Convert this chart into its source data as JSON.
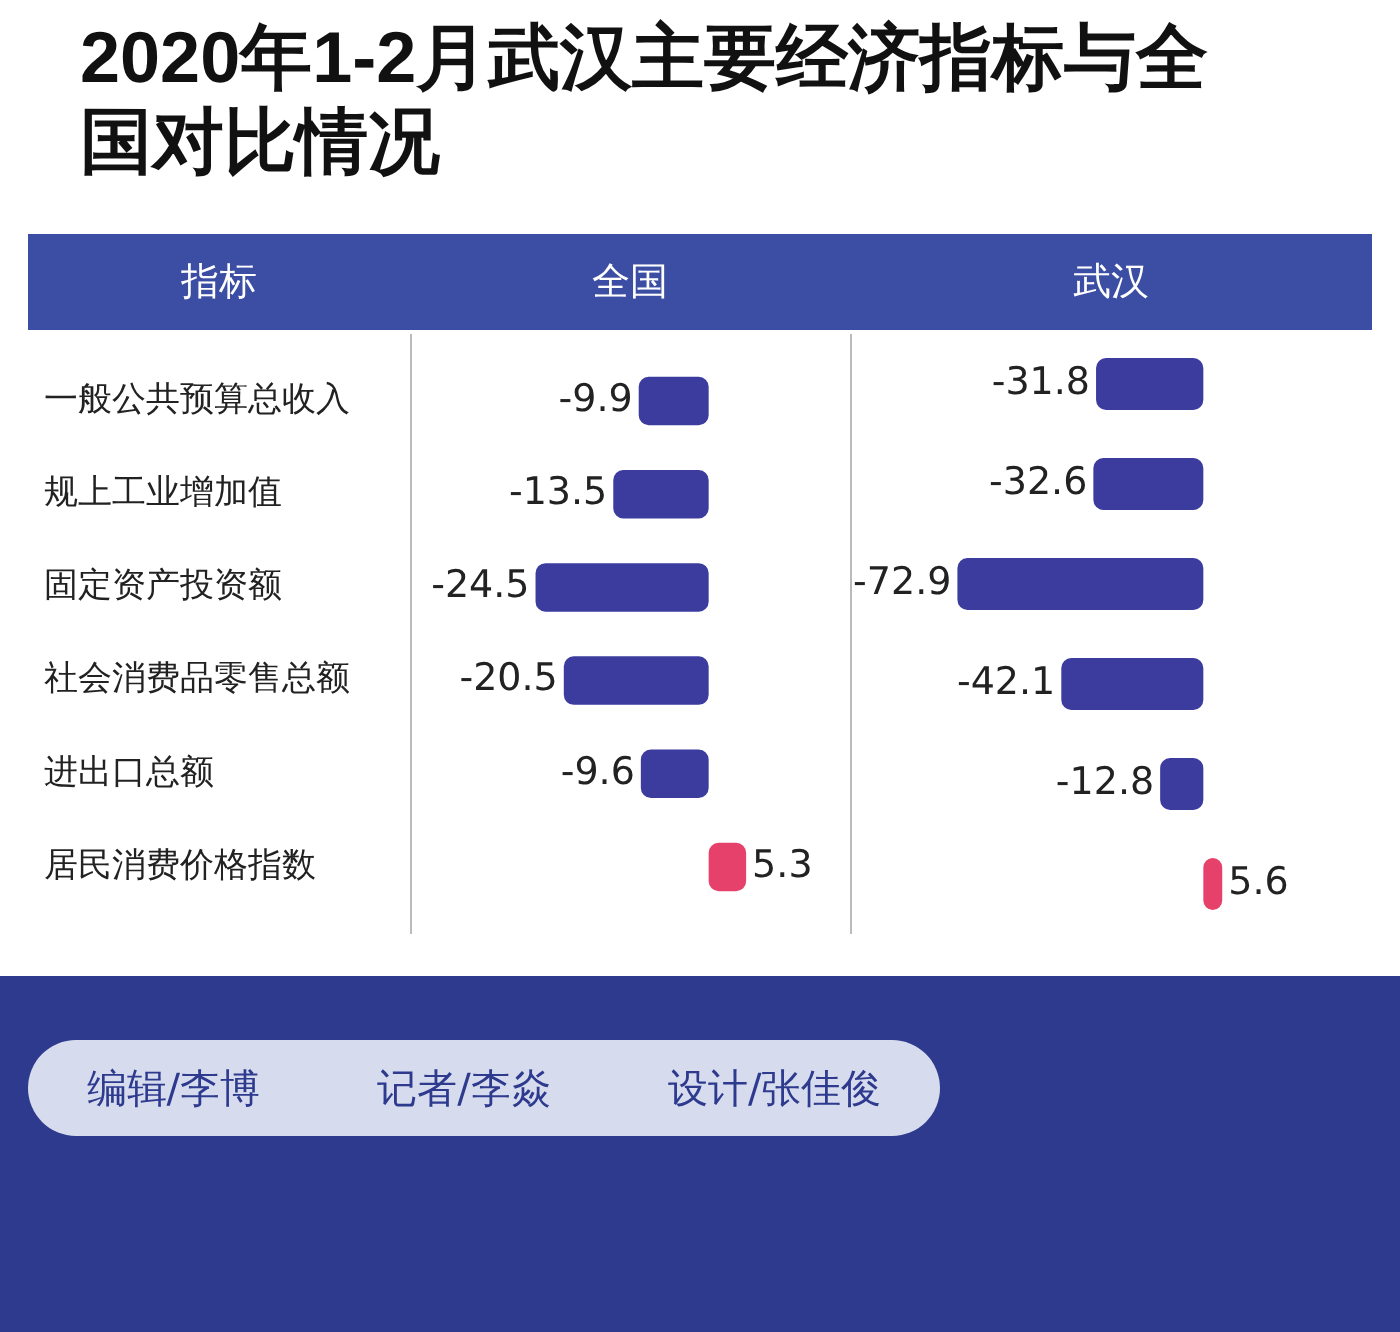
{
  "chart_data": [
    {
      "type": "other",
      "title": "2020年1-2月武汉主要经济指标与全国对比情况"
    },
    {
      "type": "bar",
      "orientation": "horizontal",
      "title": "全国",
      "ylabel": "指标",
      "categories": [
        "一般公共预算总收入",
        "规上工业增加值",
        "固定资产投资额",
        "社会消费品零售总额",
        "进出口总额",
        "居民消费价格指数"
      ],
      "values": [
        -9.9,
        -13.5,
        -24.5,
        -20.5,
        -9.6,
        5.3
      ],
      "colors": [
        "#3b3c9e",
        "#3b3c9e",
        "#3b3c9e",
        "#3b3c9e",
        "#3b3c9e",
        "#e6416b"
      ],
      "tick_labels": "y",
      "data_labels": true
    },
    {
      "type": "bar",
      "orientation": "horizontal",
      "title": "武汉",
      "categories": [
        null,
        null,
        null,
        null,
        null,
        null
      ],
      "values": [
        -31.8,
        -32.6,
        -72.9,
        -42.1,
        -12.8,
        5.6
      ],
      "colors": [
        "#3b3c9e",
        "#3b3c9e",
        "#3b3c9e",
        "#3b3c9e",
        "#3b3c9e",
        "#e6416b"
      ],
      "tick_labels": false,
      "data_labels": true
    },
    {
      "type": "other",
      "annotations": [
        "编辑/李博",
        "记者/李焱",
        "设计/张佳俊"
      ]
    }
  ]
}
